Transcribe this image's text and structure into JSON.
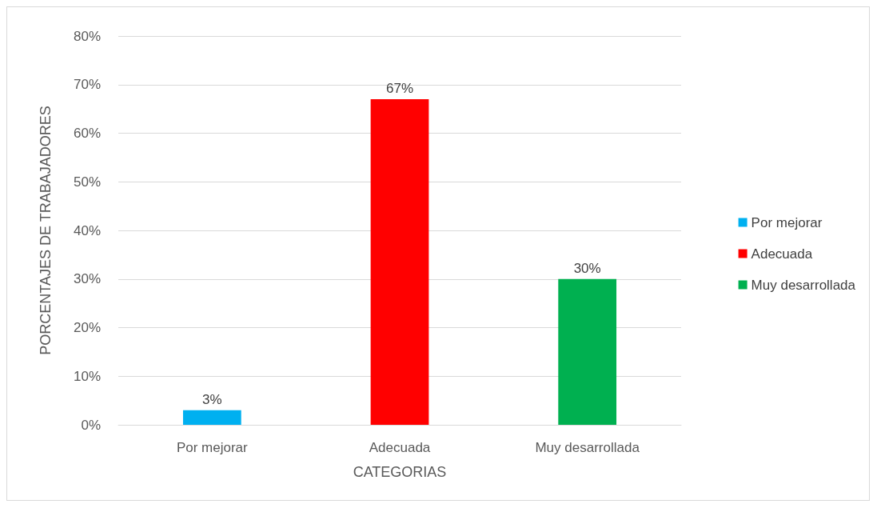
{
  "chart_data": {
    "type": "bar",
    "xlabel": "CATEGORIAS",
    "ylabel": "PORCENTAJES DE TRABAJADORES",
    "categories": [
      "Por mejorar",
      "Adecuada",
      "Muy desarrollada"
    ],
    "series": [
      {
        "name": "Por mejorar",
        "color": "#00b0f0",
        "values": [
          3,
          null,
          null
        ],
        "value_labels": [
          "3%",
          null,
          null
        ]
      },
      {
        "name": "Adecuada",
        "color": "#ff0000",
        "values": [
          null,
          67,
          null
        ],
        "value_labels": [
          null,
          "67%",
          null
        ]
      },
      {
        "name": "Muy desarrollada",
        "color": "#00b050",
        "values": [
          null,
          null,
          30
        ],
        "value_labels": [
          null,
          null,
          "30%"
        ]
      }
    ],
    "ylim": [
      0,
      80
    ],
    "yticks": [
      {
        "value": 0,
        "label": "0%"
      },
      {
        "value": 10,
        "label": "10%"
      },
      {
        "value": 20,
        "label": "20%"
      },
      {
        "value": 30,
        "label": "30%"
      },
      {
        "value": 40,
        "label": "40%"
      },
      {
        "value": 50,
        "label": "50%"
      },
      {
        "value": 60,
        "label": "60%"
      },
      {
        "value": 70,
        "label": "70%"
      },
      {
        "value": 80,
        "label": "80%"
      }
    ],
    "grid": "y",
    "legend": "right"
  }
}
